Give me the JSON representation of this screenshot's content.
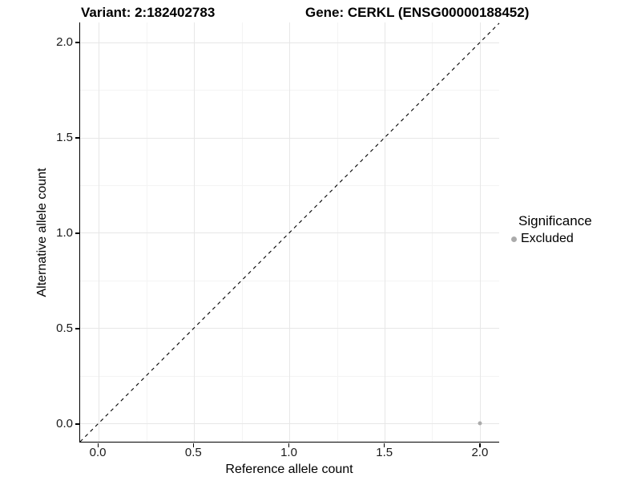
{
  "header": {
    "variant_title": "Variant: 2:182402783",
    "gene_title": "Gene: CERKL (ENSG00000188452)"
  },
  "legend": {
    "title": "Significance",
    "items": [
      {
        "label": "Excluded",
        "color": "#ababab"
      }
    ]
  },
  "chart_data": {
    "type": "scatter",
    "title": "Variant: 2:182402783    Gene: CERKL (ENSG00000188452)",
    "xlabel": "Reference allele count",
    "ylabel": "Alternative allele count",
    "xlim": [
      -0.097,
      2.101
    ],
    "ylim": [
      -0.097,
      2.105
    ],
    "x_ticks": [
      0.0,
      0.5,
      1.0,
      1.5,
      2.0
    ],
    "x_tick_labels": [
      "0.0",
      "0.5",
      "1.0",
      "1.5",
      "2.0"
    ],
    "y_ticks": [
      0.0,
      0.5,
      1.0,
      1.5,
      2.0
    ],
    "y_tick_labels": [
      "0.0",
      "0.5",
      "1.0",
      "1.5",
      "2.0"
    ],
    "x_minor_ticks": [
      0.25,
      0.75,
      1.25,
      1.75
    ],
    "y_minor_ticks": [
      0.25,
      0.75,
      1.25,
      1.75
    ],
    "grid": true,
    "legend_position": "right",
    "reference_line": {
      "type": "identity",
      "slope": 1,
      "intercept": 0,
      "style": "dashed",
      "color": "#000000"
    },
    "series": [
      {
        "name": "Excluded",
        "color": "#ababab",
        "point_size": 5,
        "points": [
          {
            "x": 2.0,
            "y": 0.0
          }
        ]
      }
    ],
    "colors": {
      "grid_major": "#e7e7e7",
      "grid_minor": "#f4f4f4",
      "axis_line": "#000000",
      "background": "#ffffff"
    }
  }
}
